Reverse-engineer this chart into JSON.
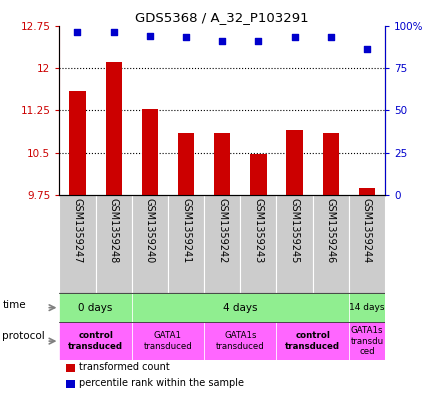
{
  "title": "GDS5368 / A_32_P103291",
  "samples": [
    "GSM1359247",
    "GSM1359248",
    "GSM1359240",
    "GSM1359241",
    "GSM1359242",
    "GSM1359243",
    "GSM1359245",
    "GSM1359246",
    "GSM1359244"
  ],
  "bar_values": [
    11.6,
    12.1,
    11.27,
    10.85,
    10.85,
    10.47,
    10.9,
    10.85,
    9.87
  ],
  "dot_values": [
    96,
    96,
    94,
    93,
    91,
    91,
    93,
    93,
    86
  ],
  "ylim_left": [
    9.75,
    12.75
  ],
  "ylim_right": [
    0,
    100
  ],
  "yticks_left": [
    9.75,
    10.5,
    11.25,
    12.0,
    12.75
  ],
  "ytick_labels_left": [
    "9.75",
    "10.5",
    "11.25",
    "12",
    "12.75"
  ],
  "yticks_right": [
    0,
    25,
    50,
    75,
    100
  ],
  "ytick_labels_right": [
    "0",
    "25",
    "50",
    "75",
    "100%"
  ],
  "bar_color": "#cc0000",
  "dot_color": "#0000cc",
  "sample_label_bg": "#cccccc",
  "time_color": "#90ee90",
  "protocol_color": "#ff66ff",
  "time_groups": [
    {
      "label": "0 days",
      "start": 0,
      "end": 2
    },
    {
      "label": "4 days",
      "start": 2,
      "end": 8
    },
    {
      "label": "14 days",
      "start": 8,
      "end": 9
    }
  ],
  "protocol_groups": [
    {
      "label": "control\ntransduced",
      "start": 0,
      "end": 2,
      "bold": true
    },
    {
      "label": "GATA1\ntransduced",
      "start": 2,
      "end": 4,
      "bold": false
    },
    {
      "label": "GATA1s\ntransduced",
      "start": 4,
      "end": 6,
      "bold": false
    },
    {
      "label": "control\ntransduced",
      "start": 6,
      "end": 8,
      "bold": true
    },
    {
      "label": "GATA1s\ntransdu\nced",
      "start": 8,
      "end": 9,
      "bold": false
    }
  ],
  "legend_items": [
    {
      "color": "#cc0000",
      "label": "transformed count"
    },
    {
      "color": "#0000cc",
      "label": "percentile rank within the sample"
    }
  ]
}
